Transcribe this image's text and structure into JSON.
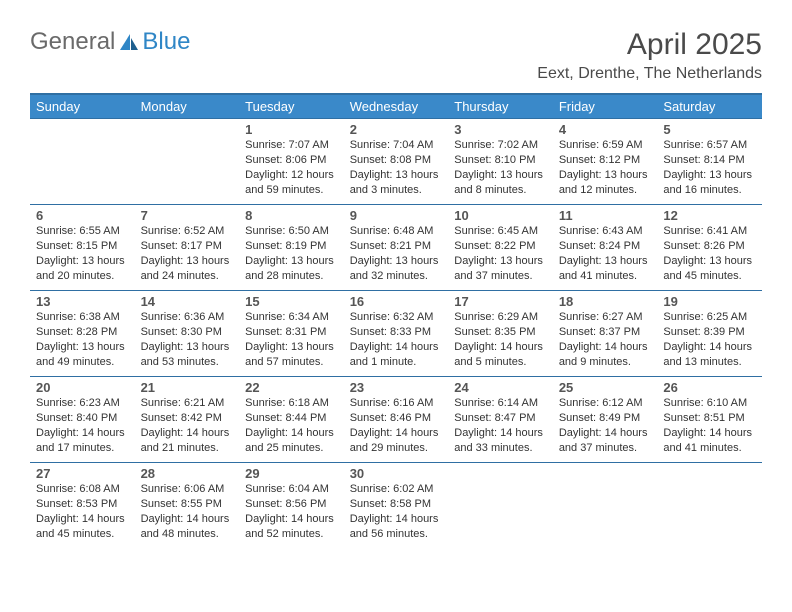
{
  "logo": {
    "text1": "General",
    "text2": "Blue"
  },
  "header": {
    "title": "April 2025",
    "location": "Eext, Drenthe, The Netherlands"
  },
  "colors": {
    "header_bg": "#3a89c9",
    "header_border": "#2f6fa3",
    "row_border": "#2f6fa3",
    "text": "#333333",
    "logo_gray": "#6a6a6a",
    "logo_blue": "#2f86c6"
  },
  "weekdays": [
    "Sunday",
    "Monday",
    "Tuesday",
    "Wednesday",
    "Thursday",
    "Friday",
    "Saturday"
  ],
  "weeks": [
    [
      null,
      null,
      {
        "n": "1",
        "sr": "Sunrise: 7:07 AM",
        "ss": "Sunset: 8:06 PM",
        "dl1": "Daylight: 12 hours",
        "dl2": "and 59 minutes."
      },
      {
        "n": "2",
        "sr": "Sunrise: 7:04 AM",
        "ss": "Sunset: 8:08 PM",
        "dl1": "Daylight: 13 hours",
        "dl2": "and 3 minutes."
      },
      {
        "n": "3",
        "sr": "Sunrise: 7:02 AM",
        "ss": "Sunset: 8:10 PM",
        "dl1": "Daylight: 13 hours",
        "dl2": "and 8 minutes."
      },
      {
        "n": "4",
        "sr": "Sunrise: 6:59 AM",
        "ss": "Sunset: 8:12 PM",
        "dl1": "Daylight: 13 hours",
        "dl2": "and 12 minutes."
      },
      {
        "n": "5",
        "sr": "Sunrise: 6:57 AM",
        "ss": "Sunset: 8:14 PM",
        "dl1": "Daylight: 13 hours",
        "dl2": "and 16 minutes."
      }
    ],
    [
      {
        "n": "6",
        "sr": "Sunrise: 6:55 AM",
        "ss": "Sunset: 8:15 PM",
        "dl1": "Daylight: 13 hours",
        "dl2": "and 20 minutes."
      },
      {
        "n": "7",
        "sr": "Sunrise: 6:52 AM",
        "ss": "Sunset: 8:17 PM",
        "dl1": "Daylight: 13 hours",
        "dl2": "and 24 minutes."
      },
      {
        "n": "8",
        "sr": "Sunrise: 6:50 AM",
        "ss": "Sunset: 8:19 PM",
        "dl1": "Daylight: 13 hours",
        "dl2": "and 28 minutes."
      },
      {
        "n": "9",
        "sr": "Sunrise: 6:48 AM",
        "ss": "Sunset: 8:21 PM",
        "dl1": "Daylight: 13 hours",
        "dl2": "and 32 minutes."
      },
      {
        "n": "10",
        "sr": "Sunrise: 6:45 AM",
        "ss": "Sunset: 8:22 PM",
        "dl1": "Daylight: 13 hours",
        "dl2": "and 37 minutes."
      },
      {
        "n": "11",
        "sr": "Sunrise: 6:43 AM",
        "ss": "Sunset: 8:24 PM",
        "dl1": "Daylight: 13 hours",
        "dl2": "and 41 minutes."
      },
      {
        "n": "12",
        "sr": "Sunrise: 6:41 AM",
        "ss": "Sunset: 8:26 PM",
        "dl1": "Daylight: 13 hours",
        "dl2": "and 45 minutes."
      }
    ],
    [
      {
        "n": "13",
        "sr": "Sunrise: 6:38 AM",
        "ss": "Sunset: 8:28 PM",
        "dl1": "Daylight: 13 hours",
        "dl2": "and 49 minutes."
      },
      {
        "n": "14",
        "sr": "Sunrise: 6:36 AM",
        "ss": "Sunset: 8:30 PM",
        "dl1": "Daylight: 13 hours",
        "dl2": "and 53 minutes."
      },
      {
        "n": "15",
        "sr": "Sunrise: 6:34 AM",
        "ss": "Sunset: 8:31 PM",
        "dl1": "Daylight: 13 hours",
        "dl2": "and 57 minutes."
      },
      {
        "n": "16",
        "sr": "Sunrise: 6:32 AM",
        "ss": "Sunset: 8:33 PM",
        "dl1": "Daylight: 14 hours",
        "dl2": "and 1 minute."
      },
      {
        "n": "17",
        "sr": "Sunrise: 6:29 AM",
        "ss": "Sunset: 8:35 PM",
        "dl1": "Daylight: 14 hours",
        "dl2": "and 5 minutes."
      },
      {
        "n": "18",
        "sr": "Sunrise: 6:27 AM",
        "ss": "Sunset: 8:37 PM",
        "dl1": "Daylight: 14 hours",
        "dl2": "and 9 minutes."
      },
      {
        "n": "19",
        "sr": "Sunrise: 6:25 AM",
        "ss": "Sunset: 8:39 PM",
        "dl1": "Daylight: 14 hours",
        "dl2": "and 13 minutes."
      }
    ],
    [
      {
        "n": "20",
        "sr": "Sunrise: 6:23 AM",
        "ss": "Sunset: 8:40 PM",
        "dl1": "Daylight: 14 hours",
        "dl2": "and 17 minutes."
      },
      {
        "n": "21",
        "sr": "Sunrise: 6:21 AM",
        "ss": "Sunset: 8:42 PM",
        "dl1": "Daylight: 14 hours",
        "dl2": "and 21 minutes."
      },
      {
        "n": "22",
        "sr": "Sunrise: 6:18 AM",
        "ss": "Sunset: 8:44 PM",
        "dl1": "Daylight: 14 hours",
        "dl2": "and 25 minutes."
      },
      {
        "n": "23",
        "sr": "Sunrise: 6:16 AM",
        "ss": "Sunset: 8:46 PM",
        "dl1": "Daylight: 14 hours",
        "dl2": "and 29 minutes."
      },
      {
        "n": "24",
        "sr": "Sunrise: 6:14 AM",
        "ss": "Sunset: 8:47 PM",
        "dl1": "Daylight: 14 hours",
        "dl2": "and 33 minutes."
      },
      {
        "n": "25",
        "sr": "Sunrise: 6:12 AM",
        "ss": "Sunset: 8:49 PM",
        "dl1": "Daylight: 14 hours",
        "dl2": "and 37 minutes."
      },
      {
        "n": "26",
        "sr": "Sunrise: 6:10 AM",
        "ss": "Sunset: 8:51 PM",
        "dl1": "Daylight: 14 hours",
        "dl2": "and 41 minutes."
      }
    ],
    [
      {
        "n": "27",
        "sr": "Sunrise: 6:08 AM",
        "ss": "Sunset: 8:53 PM",
        "dl1": "Daylight: 14 hours",
        "dl2": "and 45 minutes."
      },
      {
        "n": "28",
        "sr": "Sunrise: 6:06 AM",
        "ss": "Sunset: 8:55 PM",
        "dl1": "Daylight: 14 hours",
        "dl2": "and 48 minutes."
      },
      {
        "n": "29",
        "sr": "Sunrise: 6:04 AM",
        "ss": "Sunset: 8:56 PM",
        "dl1": "Daylight: 14 hours",
        "dl2": "and 52 minutes."
      },
      {
        "n": "30",
        "sr": "Sunrise: 6:02 AM",
        "ss": "Sunset: 8:58 PM",
        "dl1": "Daylight: 14 hours",
        "dl2": "and 56 minutes."
      },
      null,
      null,
      null
    ]
  ]
}
